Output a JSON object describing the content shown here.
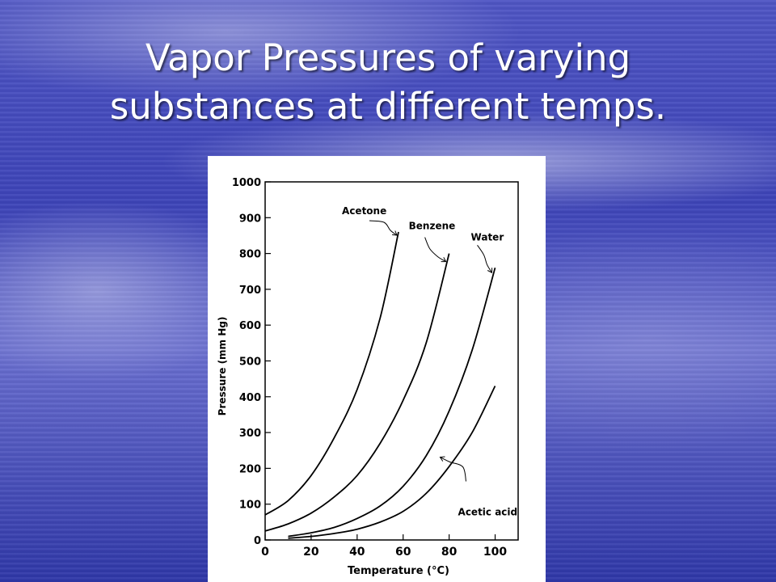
{
  "slide": {
    "title_line1": "Vapor Pressures of varying",
    "title_line2": "substances at different temps."
  },
  "chart_data": {
    "type": "line",
    "title": "",
    "xlabel": "Temperature (°C)",
    "ylabel": "Pressure (mm Hg)",
    "xlim": [
      0,
      110
    ],
    "ylim": [
      0,
      1000
    ],
    "x_ticks": [
      0,
      20,
      40,
      60,
      80,
      100
    ],
    "y_ticks": [
      0,
      100,
      200,
      300,
      400,
      500,
      600,
      700,
      800,
      900,
      1000
    ],
    "grid": false,
    "series": [
      {
        "name": "Acetone",
        "x": [
          0,
          10,
          20,
          30,
          40,
          50,
          58
        ],
        "y": [
          70,
          110,
          180,
          285,
          420,
          620,
          860
        ]
      },
      {
        "name": "Benzene",
        "x": [
          0,
          10,
          20,
          30,
          40,
          50,
          60,
          70,
          80
        ],
        "y": [
          25,
          45,
          75,
          120,
          180,
          270,
          390,
          550,
          800
        ]
      },
      {
        "name": "Water",
        "x": [
          10,
          20,
          30,
          40,
          50,
          60,
          70,
          80,
          90,
          100
        ],
        "y": [
          10,
          20,
          35,
          60,
          95,
          150,
          235,
          360,
          530,
          760
        ]
      },
      {
        "name": "Acetic acid",
        "x": [
          10,
          20,
          30,
          40,
          50,
          60,
          70,
          80,
          90,
          100
        ],
        "y": [
          5,
          10,
          18,
          30,
          50,
          80,
          130,
          205,
          300,
          430
        ]
      }
    ],
    "colors": {
      "line": "#000000",
      "background": "#ffffff"
    }
  }
}
